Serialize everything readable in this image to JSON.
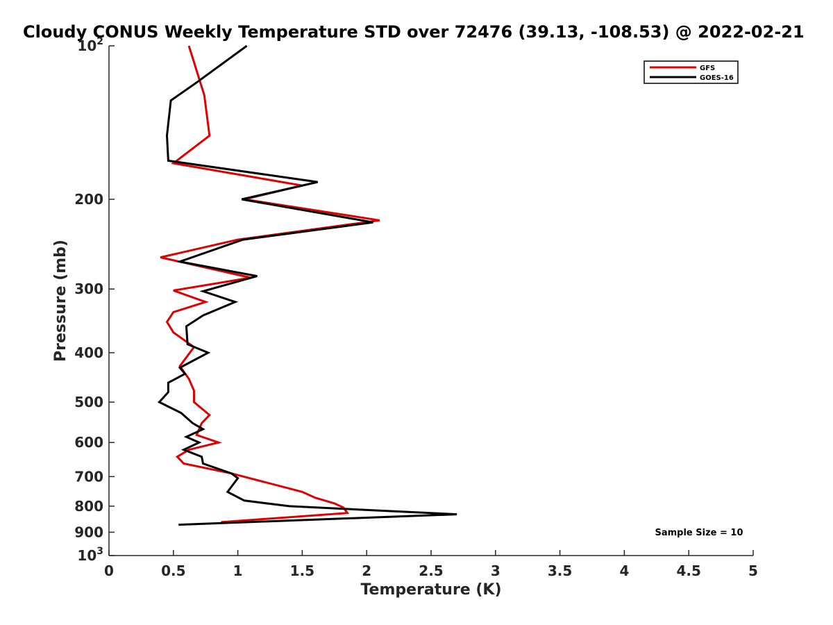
{
  "chart_data": {
    "type": "line",
    "title": "Cloudy CONUS Weekly Temperature STD over 72476 (39.13, -108.53) @ 2022-02-21",
    "xlabel": "Temperature (K)",
    "ylabel": "Pressure (mb)",
    "xlim": [
      0,
      5
    ],
    "ylim": [
      100,
      1000
    ],
    "y_scale": "log",
    "y_reversed": true,
    "xticks": [
      {
        "value": 0,
        "label": "0"
      },
      {
        "value": 0.5,
        "label": "0.5"
      },
      {
        "value": 1,
        "label": "1"
      },
      {
        "value": 1.5,
        "label": "1.5"
      },
      {
        "value": 2,
        "label": "2"
      },
      {
        "value": 2.5,
        "label": "2.5"
      },
      {
        "value": 3,
        "label": "3"
      },
      {
        "value": 3.5,
        "label": "3.5"
      },
      {
        "value": 4,
        "label": "4"
      },
      {
        "value": 4.5,
        "label": "4.5"
      },
      {
        "value": 5,
        "label": "5"
      }
    ],
    "yticks": [
      {
        "value": 100,
        "base": "10",
        "exp": "2"
      },
      {
        "value": 200,
        "label": "200"
      },
      {
        "value": 300,
        "label": "300"
      },
      {
        "value": 400,
        "label": "400"
      },
      {
        "value": 500,
        "label": "500"
      },
      {
        "value": 600,
        "label": "600"
      },
      {
        "value": 700,
        "label": "700"
      },
      {
        "value": 800,
        "label": "800"
      },
      {
        "value": 900,
        "label": "900"
      },
      {
        "value": 1000,
        "base": "10",
        "exp": "3"
      }
    ],
    "legend_position": "top-right",
    "grid": false,
    "annotation": "Sample Size = 10",
    "series": [
      {
        "name": "GFS",
        "color": "#e00000",
        "points": [
          [
            0.62,
            100
          ],
          [
            0.74,
            125
          ],
          [
            0.78,
            150
          ],
          [
            0.5,
            170
          ],
          [
            1.5,
            188
          ],
          [
            1.05,
            200
          ],
          [
            2.1,
            220
          ],
          [
            1.0,
            240
          ],
          [
            0.4,
            260
          ],
          [
            1.1,
            285
          ],
          [
            0.5,
            302
          ],
          [
            0.75,
            318
          ],
          [
            0.5,
            333
          ],
          [
            0.45,
            348
          ],
          [
            0.5,
            365
          ],
          [
            0.66,
            390
          ],
          [
            0.55,
            425
          ],
          [
            0.62,
            450
          ],
          [
            0.66,
            475
          ],
          [
            0.66,
            500
          ],
          [
            0.78,
            530
          ],
          [
            0.72,
            550
          ],
          [
            0.68,
            580
          ],
          [
            0.85,
            600
          ],
          [
            0.62,
            620
          ],
          [
            0.53,
            640
          ],
          [
            0.58,
            660
          ],
          [
            0.95,
            690
          ],
          [
            1.5,
            750
          ],
          [
            1.6,
            770
          ],
          [
            1.75,
            790
          ],
          [
            1.82,
            805
          ],
          [
            1.85,
            825
          ],
          [
            0.87,
            860
          ]
        ]
      },
      {
        "name": "GOES-16",
        "color": "#000000",
        "points": [
          [
            1.07,
            100
          ],
          [
            0.68,
            118
          ],
          [
            0.48,
            128
          ],
          [
            0.45,
            150
          ],
          [
            0.46,
            168
          ],
          [
            1.62,
            185
          ],
          [
            1.03,
            200
          ],
          [
            2.05,
            222
          ],
          [
            1.04,
            240
          ],
          [
            0.55,
            265
          ],
          [
            1.15,
            283
          ],
          [
            0.73,
            303
          ],
          [
            0.98,
            318
          ],
          [
            0.73,
            338
          ],
          [
            0.6,
            355
          ],
          [
            0.61,
            385
          ],
          [
            0.77,
            400
          ],
          [
            0.55,
            428
          ],
          [
            0.59,
            440
          ],
          [
            0.46,
            458
          ],
          [
            0.46,
            478
          ],
          [
            0.39,
            500
          ],
          [
            0.56,
            525
          ],
          [
            0.65,
            550
          ],
          [
            0.73,
            565
          ],
          [
            0.6,
            585
          ],
          [
            0.7,
            600
          ],
          [
            0.58,
            620
          ],
          [
            0.72,
            640
          ],
          [
            0.73,
            660
          ],
          [
            0.95,
            690
          ],
          [
            1.0,
            705
          ],
          [
            0.92,
            750
          ],
          [
            1.05,
            780
          ],
          [
            1.4,
            800
          ],
          [
            2.7,
            830
          ],
          [
            0.54,
            870
          ]
        ]
      }
    ]
  }
}
